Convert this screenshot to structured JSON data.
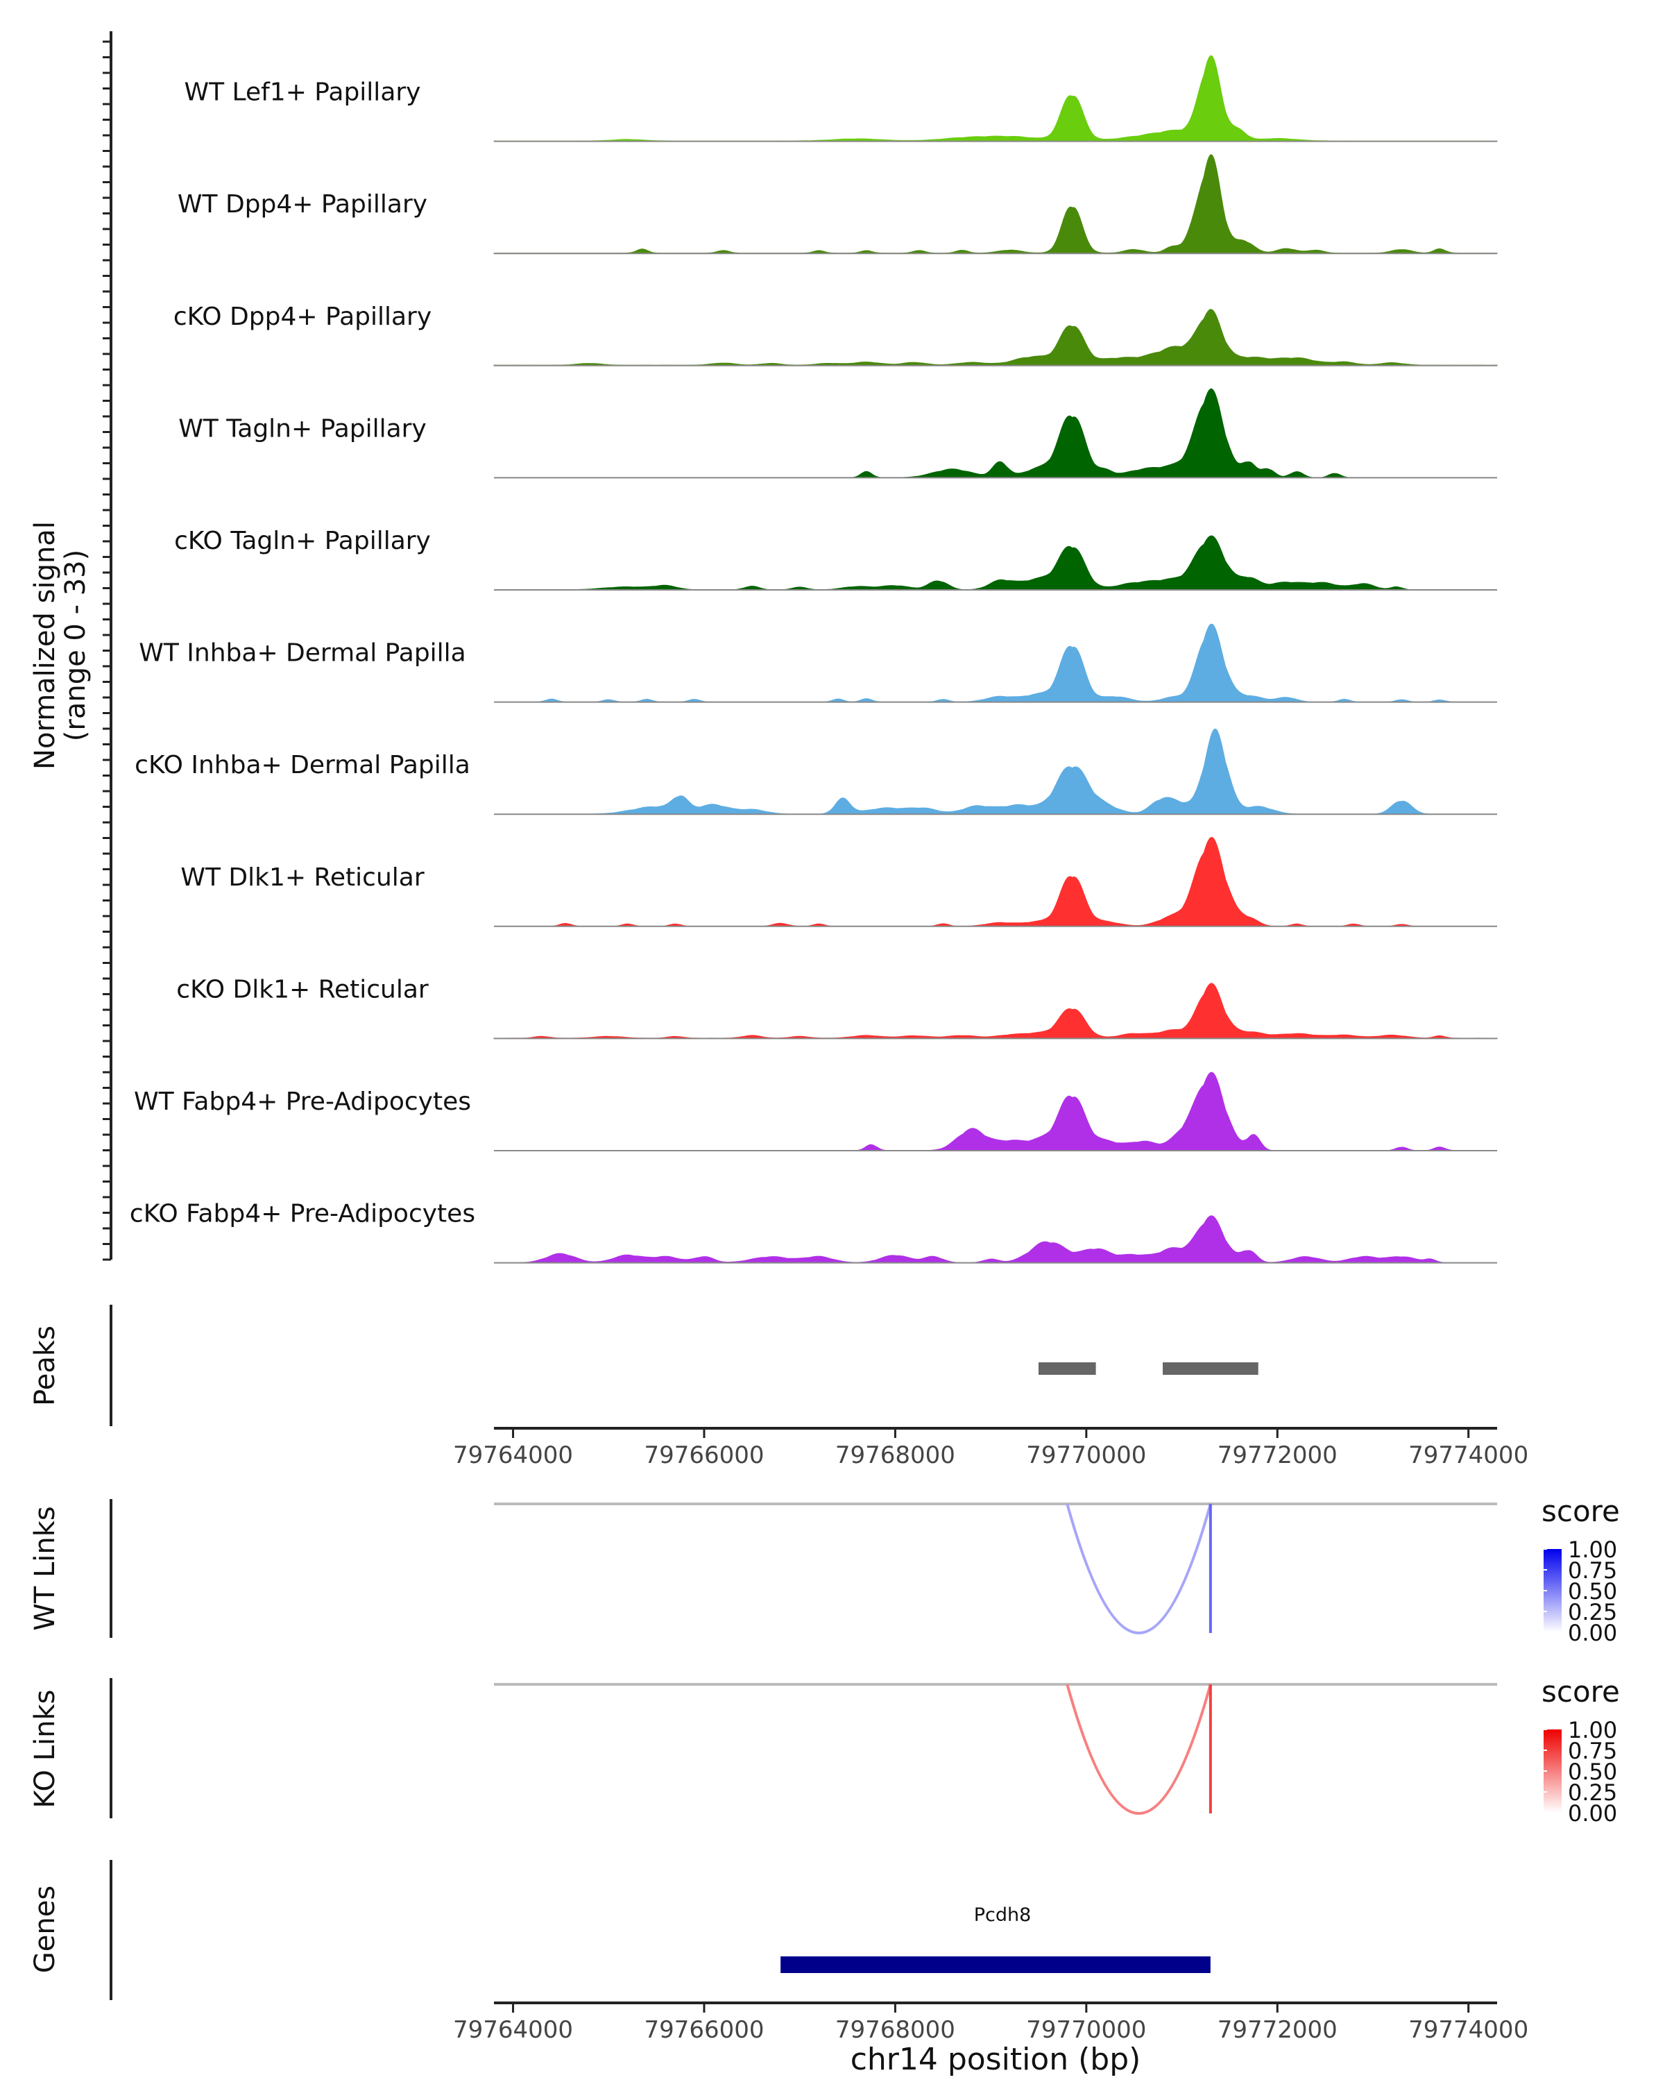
{
  "chart_data": {
    "type": "area",
    "title": "",
    "xlabel": "chr14 position (bp)",
    "xlim": [
      79763800,
      79774300
    ],
    "x_ticks": [
      79764000,
      79766000,
      79768000,
      79770000,
      79772000,
      79774000
    ],
    "x_tick_labels": [
      "79764000",
      "79766000",
      "79768000",
      "79770000",
      "79772000",
      "79774000"
    ],
    "coverage": {
      "ylabel_line1": "Normalized signal",
      "ylabel_line2": "(range 0 - 33)",
      "ylim": [
        0,
        33
      ],
      "tracks": [
        {
          "name": "WT Lef1+ Papillary",
          "color": "#6ACD0E",
          "background": 0.12,
          "peaks": [
            [
              79765200,
              160,
              0.5
            ],
            [
              79767600,
              250,
              0.7
            ],
            [
              79768700,
              250,
              0.8
            ],
            [
              79769200,
              300,
              1.4
            ],
            [
              79769850,
              110,
              15.5
            ],
            [
              79770700,
              300,
              1.8
            ],
            [
              79771000,
              200,
              2.2
            ],
            [
              79771300,
              110,
              26.5
            ],
            [
              79771600,
              80,
              3.2
            ],
            [
              79772000,
              200,
              0.8
            ]
          ]
        },
        {
          "name": "WT Dpp4+ Papillary",
          "color": "#4A8A0B",
          "background": 0.12,
          "peaks": [
            [
              79765350,
              60,
              1.3
            ],
            [
              79766200,
              60,
              0.9
            ],
            [
              79767200,
              60,
              0.8
            ],
            [
              79767700,
              60,
              0.8
            ],
            [
              79768250,
              60,
              0.9
            ],
            [
              79768700,
              60,
              1.0
            ],
            [
              79769200,
              120,
              1.0
            ],
            [
              79769850,
              100,
              16.0
            ],
            [
              79770500,
              100,
              1.2
            ],
            [
              79770900,
              80,
              2.0
            ],
            [
              79771100,
              80,
              4.0
            ],
            [
              79771300,
              110,
              31.5
            ],
            [
              79771650,
              100,
              4.0
            ],
            [
              79772100,
              100,
              1.5
            ],
            [
              79772400,
              80,
              1.0
            ],
            [
              79773300,
              100,
              1.2
            ],
            [
              79773700,
              60,
              1.4
            ]
          ]
        },
        {
          "name": "cKO Dpp4+ Papillary",
          "color": "#4A8A0B",
          "background": 0.15,
          "peaks": [
            [
              79764800,
              120,
              0.6
            ],
            [
              79766200,
              120,
              0.7
            ],
            [
              79766700,
              100,
              0.6
            ],
            [
              79767300,
              120,
              0.6
            ],
            [
              79767700,
              150,
              1.0
            ],
            [
              79768200,
              120,
              0.9
            ],
            [
              79768800,
              150,
              0.9
            ],
            [
              79769450,
              200,
              2.8
            ],
            [
              79769850,
              120,
              13.0
            ],
            [
              79770300,
              200,
              2.0
            ],
            [
              79770800,
              250,
              2.5
            ],
            [
              79771000,
              200,
              4.0
            ],
            [
              79771300,
              120,
              16.0
            ],
            [
              79771700,
              200,
              2.5
            ],
            [
              79772200,
              200,
              2.3
            ],
            [
              79772700,
              120,
              1.0
            ],
            [
              79773200,
              120,
              0.8
            ]
          ]
        },
        {
          "name": "WT Tagln+ Papillary",
          "color": "#006400",
          "background": 0.0,
          "peaks": [
            [
              79767700,
              60,
              2.0
            ],
            [
              79768600,
              200,
              2.8
            ],
            [
              79769100,
              80,
              5.0
            ],
            [
              79769500,
              150,
              3.0
            ],
            [
              79769850,
              130,
              21.0
            ],
            [
              79770200,
              80,
              2.0
            ],
            [
              79770600,
              200,
              2.5
            ],
            [
              79771000,
              200,
              3.5
            ],
            [
              79771300,
              140,
              27.5
            ],
            [
              79771700,
              70,
              5.0
            ],
            [
              79771900,
              70,
              3.0
            ],
            [
              79772200,
              70,
              2.0
            ],
            [
              79772600,
              60,
              1.5
            ]
          ]
        },
        {
          "name": "cKO Tagln+ Papillary",
          "color": "#006400",
          "background": 0.0,
          "peaks": [
            [
              79765200,
              250,
              1.0
            ],
            [
              79765600,
              120,
              1.2
            ],
            [
              79766500,
              80,
              1.2
            ],
            [
              79767000,
              80,
              0.9
            ],
            [
              79767600,
              150,
              1.1
            ],
            [
              79768000,
              150,
              1.4
            ],
            [
              79768450,
              100,
              3.0
            ],
            [
              79769100,
              120,
              2.8
            ],
            [
              79769500,
              200,
              3.5
            ],
            [
              79769850,
              130,
              14.0
            ],
            [
              79770500,
              200,
              2.0
            ],
            [
              79770900,
              200,
              3.0
            ],
            [
              79771300,
              150,
              17.0
            ],
            [
              79771700,
              100,
              3.5
            ],
            [
              79772100,
              200,
              2.5
            ],
            [
              79772500,
              150,
              2.0
            ],
            [
              79772900,
              120,
              2.0
            ],
            [
              79773250,
              60,
              1.0
            ]
          ]
        },
        {
          "name": "WT Inhba+ Dermal Papilla",
          "color": "#5DADE2",
          "background": 0.0,
          "peaks": [
            [
              79764400,
              60,
              1.0
            ],
            [
              79765000,
              60,
              0.8
            ],
            [
              79765400,
              60,
              0.9
            ],
            [
              79765900,
              60,
              0.9
            ],
            [
              79767400,
              60,
              1.0
            ],
            [
              79767700,
              60,
              1.1
            ],
            [
              79768500,
              60,
              0.9
            ],
            [
              79769100,
              150,
              1.8
            ],
            [
              79769500,
              150,
              2.5
            ],
            [
              79769850,
              120,
              19.0
            ],
            [
              79770300,
              150,
              1.8
            ],
            [
              79770900,
              120,
              1.5
            ],
            [
              79771300,
              130,
              25.0
            ],
            [
              79771700,
              150,
              2.0
            ],
            [
              79772100,
              100,
              1.5
            ],
            [
              79772700,
              60,
              0.9
            ],
            [
              79773300,
              60,
              0.8
            ],
            [
              79773700,
              60,
              0.7
            ]
          ]
        },
        {
          "name": "cKO Inhba+ Dermal Papilla",
          "color": "#5DADE2",
          "background": 0.0,
          "peaks": [
            [
              79765500,
              250,
              2.5
            ],
            [
              79765750,
              80,
              4.5
            ],
            [
              79766100,
              150,
              3.0
            ],
            [
              79766500,
              150,
              1.5
            ],
            [
              79767450,
              80,
              5.0
            ],
            [
              79767900,
              200,
              2.0
            ],
            [
              79768300,
              150,
              1.8
            ],
            [
              79768850,
              150,
              2.5
            ],
            [
              79769300,
              200,
              3.0
            ],
            [
              79769850,
              160,
              16.0
            ],
            [
              79770200,
              150,
              2.5
            ],
            [
              79770800,
              120,
              5.0
            ],
            [
              79771000,
              100,
              2.5
            ],
            [
              79771350,
              120,
              27.0
            ],
            [
              79771800,
              150,
              2.5
            ],
            [
              79773300,
              100,
              4.5
            ]
          ]
        },
        {
          "name": "WT Dlk1+ Reticular",
          "color": "#FF3030",
          "background": 0.0,
          "peaks": [
            [
              79764550,
              60,
              1.0
            ],
            [
              79765200,
              60,
              0.8
            ],
            [
              79765700,
              60,
              0.8
            ],
            [
              79766800,
              80,
              1.0
            ],
            [
              79767200,
              60,
              0.8
            ],
            [
              79768500,
              60,
              0.9
            ],
            [
              79769100,
              150,
              1.2
            ],
            [
              79769500,
              150,
              1.5
            ],
            [
              79769850,
              120,
              17.0
            ],
            [
              79770200,
              150,
              1.5
            ],
            [
              79770900,
              150,
              3.0
            ],
            [
              79771300,
              150,
              28.5
            ],
            [
              79771700,
              100,
              2.5
            ],
            [
              79772200,
              60,
              0.8
            ],
            [
              79772800,
              60,
              0.8
            ],
            [
              79773300,
              60,
              0.7
            ]
          ]
        },
        {
          "name": "cKO Dlk1+ Reticular",
          "color": "#FF3030",
          "background": 0.1,
          "peaks": [
            [
              79764300,
              80,
              0.6
            ],
            [
              79765000,
              150,
              0.6
            ],
            [
              79765700,
              80,
              0.6
            ],
            [
              79766500,
              100,
              0.9
            ],
            [
              79767000,
              100,
              0.6
            ],
            [
              79767700,
              150,
              0.9
            ],
            [
              79768200,
              150,
              0.8
            ],
            [
              79768700,
              150,
              0.9
            ],
            [
              79769200,
              150,
              1.0
            ],
            [
              79769500,
              150,
              1.5
            ],
            [
              79769850,
              130,
              10.0
            ],
            [
              79770500,
              150,
              1.5
            ],
            [
              79770900,
              150,
              2.5
            ],
            [
              79771300,
              130,
              17.5
            ],
            [
              79771700,
              150,
              2.0
            ],
            [
              79772200,
              200,
              1.5
            ],
            [
              79772700,
              150,
              1.0
            ],
            [
              79773200,
              150,
              1.0
            ],
            [
              79773700,
              60,
              0.8
            ]
          ]
        },
        {
          "name": "WT Fabp4+ Pre-Adipocytes",
          "color": "#B030E8",
          "background": 0.0,
          "peaks": [
            [
              79767750,
              60,
              2.0
            ],
            [
              79768800,
              150,
              7.0
            ],
            [
              79769200,
              150,
              3.0
            ],
            [
              79769550,
              150,
              3.5
            ],
            [
              79769850,
              130,
              18.0
            ],
            [
              79770200,
              150,
              3.0
            ],
            [
              79770600,
              150,
              3.0
            ],
            [
              79771000,
              120,
              4.5
            ],
            [
              79771300,
              150,
              25.0
            ],
            [
              79771750,
              70,
              5.0
            ],
            [
              79773300,
              60,
              1.2
            ],
            [
              79773700,
              60,
              1.2
            ]
          ]
        },
        {
          "name": "cKO Fabp4+ Pre-Adipocytes",
          "color": "#B030E8",
          "background": 0.0,
          "peaks": [
            [
              79764500,
              150,
              3.0
            ],
            [
              79765200,
              150,
              2.5
            ],
            [
              79765600,
              150,
              2.0
            ],
            [
              79766000,
              100,
              2.0
            ],
            [
              79766700,
              200,
              2.0
            ],
            [
              79767200,
              150,
              2.0
            ],
            [
              79768000,
              150,
              2.5
            ],
            [
              79768400,
              100,
              2.0
            ],
            [
              79769000,
              80,
              1.2
            ],
            [
              79769600,
              180,
              7.0
            ],
            [
              79770100,
              150,
              4.5
            ],
            [
              79770500,
              150,
              2.5
            ],
            [
              79770900,
              150,
              4.5
            ],
            [
              79771300,
              140,
              15.0
            ],
            [
              79771700,
              80,
              4.0
            ],
            [
              79772300,
              150,
              2.0
            ],
            [
              79772900,
              150,
              2.0
            ],
            [
              79773300,
              150,
              2.0
            ],
            [
              79773600,
              60,
              1.0
            ]
          ]
        }
      ]
    },
    "peaks_track": {
      "label": "Peaks",
      "color": "#666666",
      "ranges": [
        [
          79769500,
          79770100
        ],
        [
          79770800,
          79771800
        ]
      ]
    },
    "links": [
      {
        "label": "WT Links",
        "legend_title": "score",
        "low_color": "#FFFFFF",
        "high_color": "#0000EE",
        "legend_ticks": [
          "1.00",
          "0.75",
          "0.50",
          "0.25",
          "0.00"
        ],
        "arcs": [
          {
            "start": 79769800,
            "end": 79771300,
            "score": 0.35
          },
          {
            "start": 79771300,
            "end": 79771310,
            "score": 0.6
          }
        ]
      },
      {
        "label": "KO Links",
        "legend_title": "score",
        "low_color": "#FFFFFF",
        "high_color": "#EE0000",
        "legend_ticks": [
          "1.00",
          "0.75",
          "0.50",
          "0.25",
          "0.00"
        ],
        "arcs": [
          {
            "start": 79769800,
            "end": 79771300,
            "score": 0.5
          },
          {
            "start": 79771300,
            "end": 79771310,
            "score": 0.75
          }
        ]
      }
    ],
    "genes": {
      "label": "Genes",
      "color": "#00008B",
      "items": [
        {
          "name": "Pcdh8",
          "start": 79766800,
          "end": 79771300
        }
      ]
    }
  }
}
